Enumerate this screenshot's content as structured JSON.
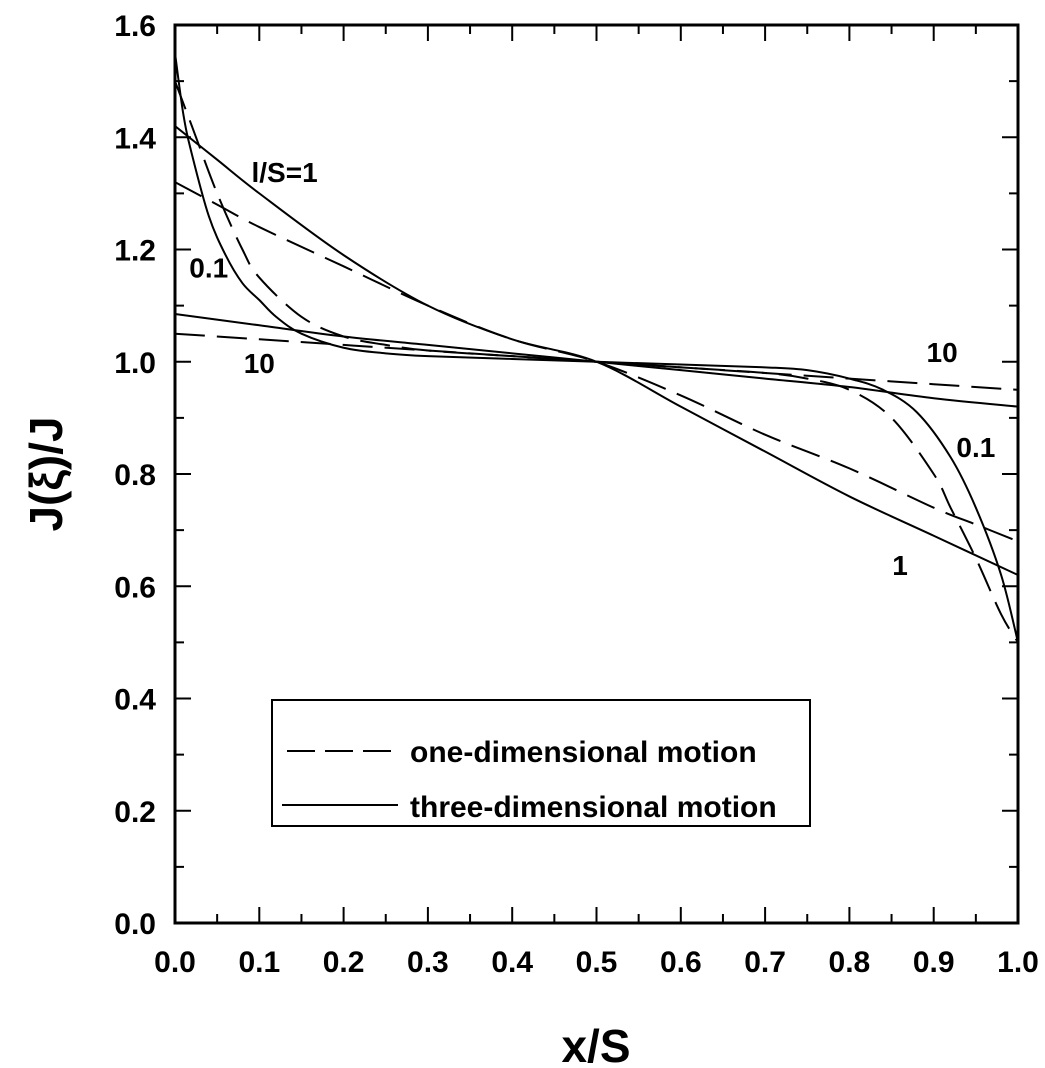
{
  "chart_data": {
    "type": "line",
    "xlabel": "x/S",
    "ylabel": "J(ξ)/J",
    "xlim": [
      0.0,
      1.0
    ],
    "ylim": [
      0.0,
      1.6
    ],
    "xticks": [
      "0.0",
      "0.1",
      "0.2",
      "0.3",
      "0.4",
      "0.5",
      "0.6",
      "0.7",
      "0.8",
      "0.9",
      "1.0"
    ],
    "yticks": [
      "0.0",
      "0.2",
      "0.4",
      "0.6",
      "0.8",
      "1.0",
      "1.2",
      "1.4",
      "1.6"
    ],
    "grid": false,
    "legend": {
      "placement": "lower-center",
      "entries": [
        {
          "label": "one-dimensional motion",
          "style": "dashed"
        },
        {
          "label": "three-dimensional motion",
          "style": "solid"
        }
      ]
    },
    "annotations": [
      {
        "text": "l/S=1",
        "x": 0.13,
        "y": 1.32
      },
      {
        "text": "0.1",
        "x": 0.04,
        "y": 1.15
      },
      {
        "text": "10",
        "x": 0.1,
        "y": 0.98
      },
      {
        "text": "10",
        "x": 0.91,
        "y": 1.0
      },
      {
        "text": "0.1",
        "x": 0.95,
        "y": 0.83
      },
      {
        "text": "1",
        "x": 0.86,
        "y": 0.62
      }
    ],
    "series": [
      {
        "style": "dashed",
        "param": "0.1",
        "x": [
          0.0,
          0.02,
          0.05,
          0.08,
          0.1,
          0.15,
          0.2,
          0.25,
          0.3,
          0.4,
          0.5,
          0.6,
          0.7,
          0.75,
          0.8,
          0.85,
          0.9,
          0.92,
          0.95,
          0.98,
          1.0
        ],
        "y": [
          1.5,
          1.42,
          1.3,
          1.2,
          1.15,
          1.08,
          1.045,
          1.03,
          1.02,
          1.01,
          1.0,
          0.99,
          0.98,
          0.97,
          0.95,
          0.9,
          0.8,
          0.74,
          0.65,
          0.55,
          0.5
        ]
      },
      {
        "style": "dashed",
        "param": "1",
        "x": [
          0.0,
          0.05,
          0.1,
          0.2,
          0.3,
          0.4,
          0.5,
          0.6,
          0.7,
          0.8,
          0.9,
          0.95,
          1.0
        ],
        "y": [
          1.32,
          1.28,
          1.24,
          1.17,
          1.1,
          1.04,
          1.0,
          0.94,
          0.87,
          0.81,
          0.74,
          0.71,
          0.68
        ]
      },
      {
        "style": "dashed",
        "param": "10",
        "x": [
          0.0,
          0.1,
          0.2,
          0.3,
          0.4,
          0.5,
          0.6,
          0.7,
          0.8,
          0.9,
          1.0
        ],
        "y": [
          1.05,
          1.04,
          1.03,
          1.02,
          1.01,
          1.0,
          0.99,
          0.98,
          0.97,
          0.96,
          0.95
        ]
      },
      {
        "style": "solid",
        "param": "0.1",
        "x": [
          0.0,
          0.01,
          0.02,
          0.04,
          0.06,
          0.08,
          0.1,
          0.12,
          0.15,
          0.2,
          0.25,
          0.3,
          0.4,
          0.5,
          0.6,
          0.7,
          0.75,
          0.8,
          0.84,
          0.88,
          0.92,
          0.95,
          0.98,
          1.0
        ],
        "y": [
          1.55,
          1.44,
          1.37,
          1.26,
          1.19,
          1.14,
          1.11,
          1.08,
          1.05,
          1.025,
          1.015,
          1.01,
          1.005,
          1.0,
          0.995,
          0.99,
          0.985,
          0.97,
          0.95,
          0.91,
          0.83,
          0.74,
          0.62,
          0.5
        ]
      },
      {
        "style": "solid",
        "param": "1",
        "x": [
          0.0,
          0.05,
          0.1,
          0.2,
          0.3,
          0.4,
          0.5,
          0.6,
          0.7,
          0.8,
          0.9,
          1.0
        ],
        "y": [
          1.42,
          1.36,
          1.3,
          1.19,
          1.1,
          1.04,
          1.0,
          0.92,
          0.84,
          0.76,
          0.69,
          0.62
        ]
      },
      {
        "style": "solid",
        "param": "10",
        "x": [
          0.0,
          0.1,
          0.2,
          0.3,
          0.4,
          0.5,
          0.6,
          0.7,
          0.8,
          0.9,
          1.0
        ],
        "y": [
          1.085,
          1.065,
          1.045,
          1.03,
          1.015,
          1.0,
          0.985,
          0.97,
          0.955,
          0.935,
          0.92
        ]
      }
    ]
  }
}
